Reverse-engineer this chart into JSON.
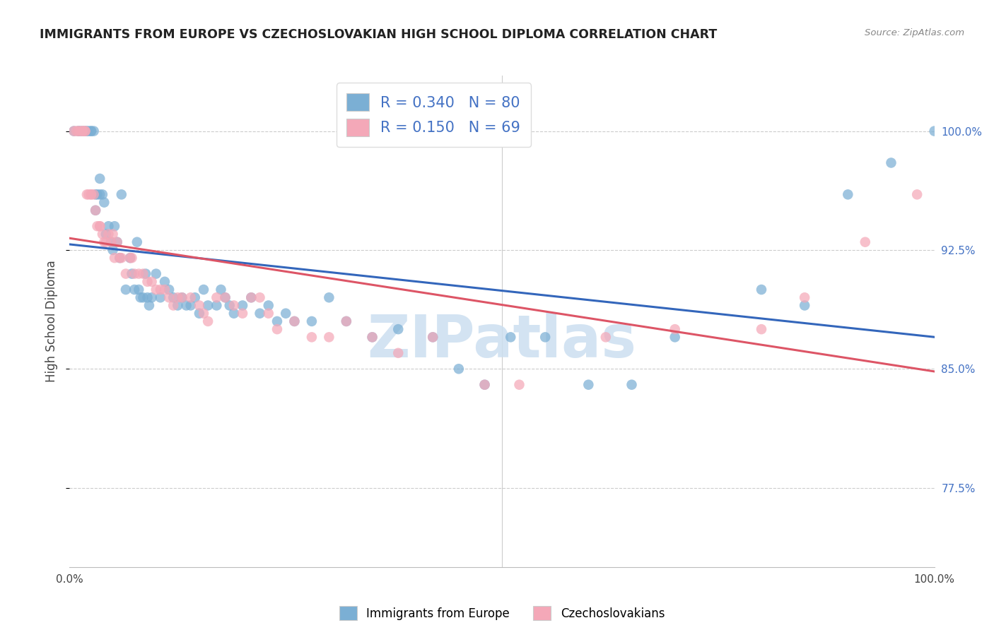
{
  "title": "IMMIGRANTS FROM EUROPE VS CZECHOSLOVAKIAN HIGH SCHOOL DIPLOMA CORRELATION CHART",
  "source": "Source: ZipAtlas.com",
  "ylabel": "High School Diploma",
  "xlim": [
    0.0,
    1.0
  ],
  "ylim": [
    0.725,
    1.035
  ],
  "yticks": [
    0.775,
    0.85,
    0.925,
    1.0
  ],
  "ytick_labels": [
    "77.5%",
    "85.0%",
    "92.5%",
    "100.0%"
  ],
  "xtick_labels": [
    "0.0%",
    "",
    "",
    "",
    "",
    "100.0%"
  ],
  "legend_blue_r": "R = 0.340",
  "legend_blue_n": "N = 80",
  "legend_pink_r": "R = 0.150",
  "legend_pink_n": "N = 69",
  "blue_color": "#7bafd4",
  "pink_color": "#f4a8b8",
  "line_blue_color": "#3366bb",
  "line_pink_color": "#dd5566",
  "tick_color": "#4472c4",
  "watermark": "ZIPatlas",
  "blue_label": "Immigrants from Europe",
  "pink_label": "Czechoslovakians",
  "blue_x": [
    0.005,
    0.01,
    0.012,
    0.015,
    0.018,
    0.02,
    0.022,
    0.025,
    0.025,
    0.028,
    0.03,
    0.03,
    0.032,
    0.035,
    0.035,
    0.038,
    0.04,
    0.042,
    0.045,
    0.048,
    0.05,
    0.052,
    0.055,
    0.058,
    0.06,
    0.065,
    0.07,
    0.072,
    0.075,
    0.078,
    0.08,
    0.082,
    0.085,
    0.088,
    0.09,
    0.092,
    0.095,
    0.1,
    0.105,
    0.11,
    0.115,
    0.12,
    0.125,
    0.13,
    0.135,
    0.14,
    0.145,
    0.15,
    0.155,
    0.16,
    0.17,
    0.175,
    0.18,
    0.185,
    0.19,
    0.2,
    0.21,
    0.22,
    0.23,
    0.24,
    0.25,
    0.26,
    0.28,
    0.3,
    0.32,
    0.35,
    0.38,
    0.42,
    0.45,
    0.48,
    0.51,
    0.55,
    0.6,
    0.65,
    0.7,
    0.8,
    0.85,
    0.9,
    0.95,
    1.0
  ],
  "blue_y": [
    1.0,
    1.0,
    1.0,
    1.0,
    1.0,
    1.0,
    1.0,
    1.0,
    1.0,
    1.0,
    0.95,
    0.96,
    0.96,
    0.97,
    0.96,
    0.96,
    0.955,
    0.935,
    0.94,
    0.93,
    0.925,
    0.94,
    0.93,
    0.92,
    0.96,
    0.9,
    0.92,
    0.91,
    0.9,
    0.93,
    0.9,
    0.895,
    0.895,
    0.91,
    0.895,
    0.89,
    0.895,
    0.91,
    0.895,
    0.905,
    0.9,
    0.895,
    0.89,
    0.895,
    0.89,
    0.89,
    0.895,
    0.885,
    0.9,
    0.89,
    0.89,
    0.9,
    0.895,
    0.89,
    0.885,
    0.89,
    0.895,
    0.885,
    0.89,
    0.88,
    0.885,
    0.88,
    0.88,
    0.895,
    0.88,
    0.87,
    0.875,
    0.87,
    0.85,
    0.84,
    0.87,
    0.87,
    0.84,
    0.84,
    0.87,
    0.9,
    0.89,
    0.96,
    0.98,
    1.0
  ],
  "pink_x": [
    0.005,
    0.008,
    0.01,
    0.012,
    0.015,
    0.015,
    0.018,
    0.018,
    0.02,
    0.022,
    0.025,
    0.025,
    0.028,
    0.03,
    0.032,
    0.035,
    0.035,
    0.038,
    0.04,
    0.042,
    0.045,
    0.048,
    0.05,
    0.052,
    0.055,
    0.058,
    0.06,
    0.065,
    0.07,
    0.072,
    0.075,
    0.08,
    0.085,
    0.09,
    0.095,
    0.1,
    0.105,
    0.11,
    0.115,
    0.12,
    0.125,
    0.13,
    0.14,
    0.15,
    0.155,
    0.16,
    0.17,
    0.18,
    0.19,
    0.2,
    0.21,
    0.22,
    0.23,
    0.24,
    0.26,
    0.28,
    0.3,
    0.32,
    0.35,
    0.38,
    0.42,
    0.48,
    0.52,
    0.62,
    0.7,
    0.8,
    0.85,
    0.92,
    0.98
  ],
  "pink_y": [
    1.0,
    1.0,
    1.0,
    1.0,
    1.0,
    1.0,
    1.0,
    1.0,
    0.96,
    0.96,
    0.96,
    0.96,
    0.96,
    0.95,
    0.94,
    0.94,
    0.94,
    0.935,
    0.93,
    0.93,
    0.935,
    0.93,
    0.935,
    0.92,
    0.93,
    0.92,
    0.92,
    0.91,
    0.92,
    0.92,
    0.91,
    0.91,
    0.91,
    0.905,
    0.905,
    0.9,
    0.9,
    0.9,
    0.895,
    0.89,
    0.895,
    0.895,
    0.895,
    0.89,
    0.885,
    0.88,
    0.895,
    0.895,
    0.89,
    0.885,
    0.895,
    0.895,
    0.885,
    0.875,
    0.88,
    0.87,
    0.87,
    0.88,
    0.87,
    0.86,
    0.87,
    0.84,
    0.84,
    0.87,
    0.875,
    0.875,
    0.895,
    0.93,
    0.96
  ]
}
